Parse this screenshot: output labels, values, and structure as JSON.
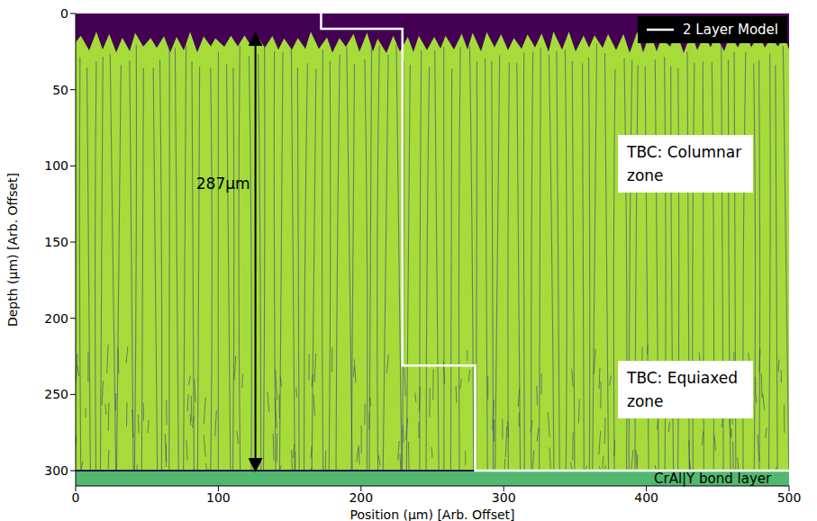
{
  "chart_data": {
    "type": "line",
    "x_label": "Position (µm) [Arb. Offset]",
    "y_label": "Depth (µm) [Arb. Offset]",
    "xlim": [
      0,
      500
    ],
    "xticks": [
      0,
      100,
      200,
      300,
      400,
      500
    ],
    "ylim": [
      310,
      0
    ],
    "yticks": [
      0,
      50,
      100,
      150,
      200,
      250,
      300
    ],
    "grid": false,
    "legend": "upper right",
    "series": [
      {
        "name": "2 Layer Model",
        "color": "#ffffff",
        "x": [
          172,
          172,
          229,
          229,
          280,
          280,
          500
        ],
        "values": [
          0,
          10,
          10,
          231,
          231,
          300,
          300
        ]
      }
    ],
    "annotations": [
      {
        "text": "TBC: Columnar zone"
      },
      {
        "text": "TBC: Equiaxed zone"
      },
      {
        "text": "CrAl|Y bond layer"
      },
      {
        "text": "287µm",
        "x": 126,
        "y": [
          13,
          300
        ]
      }
    ]
  }
}
